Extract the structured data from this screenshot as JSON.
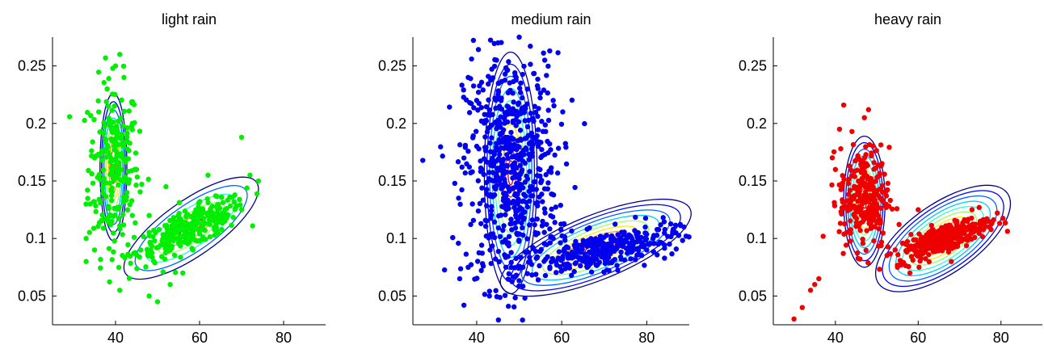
{
  "chart_data": [
    {
      "type": "scatter",
      "title": "light rain",
      "xlabel": "",
      "ylabel": "",
      "xlim": [
        25,
        90
      ],
      "ylim": [
        0.025,
        0.275
      ],
      "xticks": [
        "40",
        "60",
        "80"
      ],
      "yticks": [
        "0.05",
        "0.1",
        "0.15",
        "0.2",
        "0.25"
      ],
      "grid": false,
      "point_color": "#00ee00",
      "series": [
        {
          "cluster": "vertical",
          "center": [
            39.5,
            0.162
          ],
          "spread": [
            3.0,
            0.038
          ],
          "count": 230,
          "sample_points": [
            [
              40,
              0.25
            ],
            [
              41,
              0.26
            ],
            [
              42,
              0.24
            ],
            [
              38,
              0.23
            ],
            [
              36,
              0.21
            ],
            [
              44,
              0.2
            ],
            [
              35,
              0.17
            ],
            [
              45,
              0.16
            ],
            [
              34,
              0.13
            ],
            [
              44,
              0.12
            ],
            [
              33,
              0.1
            ],
            [
              35,
              0.09
            ],
            [
              33,
              0.08
            ],
            [
              41,
              0.055
            ]
          ]
        },
        {
          "cluster": "tilted",
          "center": [
            58,
            0.109
          ],
          "spread": [
            6.5,
            0.013
          ],
          "count": 300,
          "corr": 0.78,
          "sample_points": [
            [
              70,
              0.188
            ],
            [
              72,
              0.155
            ],
            [
              74,
              0.15
            ],
            [
              62,
              0.155
            ],
            [
              52,
              0.145
            ],
            [
              48,
              0.12
            ],
            [
              46,
              0.09
            ],
            [
              53,
              0.06
            ],
            [
              48,
              0.05
            ],
            [
              50,
              0.045
            ],
            [
              56,
              0.07
            ],
            [
              66,
              0.115
            ]
          ]
        }
      ],
      "contours": [
        {
          "center": [
            39.5,
            0.162
          ],
          "semi_axes": [
            3.2,
            0.064
          ],
          "tilt_deg": 0,
          "levels": 9
        },
        {
          "center": [
            58,
            0.109
          ],
          "semi_axes": [
            19,
            0.024
          ],
          "tilt_deg": 35,
          "levels": 6
        }
      ]
    },
    {
      "type": "scatter",
      "title": "medium rain",
      "xlabel": "",
      "ylabel": "",
      "xlim": [
        25,
        90
      ],
      "ylim": [
        0.025,
        0.275
      ],
      "xticks": [
        "40",
        "60",
        "80"
      ],
      "yticks": [
        "0.05",
        "0.1",
        "0.15",
        "0.2",
        "0.25"
      ],
      "grid": false,
      "point_color": "#0000ee",
      "series": [
        {
          "cluster": "vertical",
          "center": [
            48,
            0.16
          ],
          "spread": [
            5.5,
            0.05
          ],
          "count": 650,
          "sample_points": [
            [
              50,
              0.275
            ],
            [
              45,
              0.27
            ],
            [
              38,
              0.24
            ],
            [
              56,
              0.255
            ],
            [
              40,
              0.22
            ],
            [
              58,
              0.22
            ],
            [
              37,
              0.17
            ],
            [
              39,
              0.13
            ],
            [
              36,
              0.065
            ],
            [
              37,
              0.042
            ],
            [
              43,
              0.05
            ],
            [
              38,
              0.075
            ]
          ]
        },
        {
          "cluster": "tilted",
          "center": [
            70,
            0.09
          ],
          "spread": [
            8.5,
            0.01
          ],
          "count": 330,
          "corr": 0.6,
          "sample_points": [
            [
              80,
              0.09
            ],
            [
              78,
              0.105
            ],
            [
              66,
              0.075
            ],
            [
              62,
              0.085
            ],
            [
              74,
              0.082
            ],
            [
              58,
              0.1
            ]
          ]
        }
      ],
      "contours": [
        {
          "center": [
            48,
            0.157
          ],
          "semi_axes": [
            6.2,
            0.105
          ],
          "tilt_deg": 0,
          "levels": 10
        },
        {
          "center": [
            68,
            0.092
          ],
          "semi_axes": [
            24,
            0.028
          ],
          "tilt_deg": 22,
          "levels": 9
        }
      ]
    },
    {
      "type": "scatter",
      "title": "heavy rain",
      "xlabel": "",
      "ylabel": "",
      "xlim": [
        25,
        90
      ],
      "ylim": [
        0.025,
        0.275
      ],
      "xticks": [
        "40",
        "60",
        "80"
      ],
      "yticks": [
        "0.05",
        "0.1",
        "0.15",
        "0.2",
        "0.25"
      ],
      "grid": false,
      "point_color": "#ee0000",
      "series": [
        {
          "cluster": "vertical",
          "center": [
            47,
            0.135
          ],
          "spread": [
            3.0,
            0.022
          ],
          "count": 260,
          "sample_points": [
            [
              42,
              0.216
            ],
            [
              48,
              0.212
            ],
            [
              41,
              0.195
            ],
            [
              44,
              0.193
            ],
            [
              47,
              0.205
            ],
            [
              40,
              0.16
            ],
            [
              36,
              0.065
            ],
            [
              35,
              0.06
            ],
            [
              32,
              0.04
            ],
            [
              30,
              0.03
            ],
            [
              34,
              0.055
            ],
            [
              52,
              0.14
            ]
          ]
        },
        {
          "cluster": "tilted",
          "center": [
            66,
            0.1
          ],
          "spread": [
            5.5,
            0.009
          ],
          "count": 330,
          "corr": 0.75,
          "sample_points": [
            [
              73,
              0.125
            ],
            [
              75,
              0.115
            ],
            [
              60,
              0.125
            ],
            [
              55,
              0.075
            ],
            [
              58,
              0.07
            ],
            [
              68,
              0.08
            ]
          ]
        }
      ],
      "contours": [
        {
          "center": [
            47,
            0.132
          ],
          "semi_axes": [
            5.0,
            0.057
          ],
          "tilt_deg": 0,
          "levels": 10
        },
        {
          "center": [
            66,
            0.1
          ],
          "semi_axes": [
            19,
            0.03
          ],
          "tilt_deg": 35,
          "levels": 10
        }
      ]
    }
  ]
}
